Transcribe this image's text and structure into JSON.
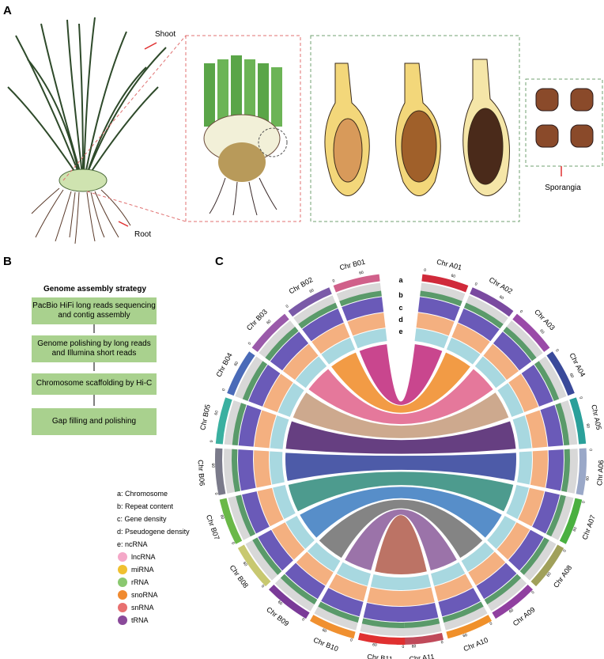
{
  "panel_a": {
    "label": "A",
    "shoot": "Shoot",
    "root": "Root",
    "sporangia": "Sporangia"
  },
  "panel_b": {
    "label": "B",
    "title": "Genome assembly strategy",
    "steps": [
      "PacBio HiFi long reads sequencing and contig assembly",
      "Genome polishing by long reads and Illumina short reads",
      "Chromosome scaffolding by Hi-C",
      "Gap filling and polishing"
    ]
  },
  "panel_c": {
    "label": "C",
    "track_letters": [
      "a",
      "b",
      "c",
      "d",
      "e"
    ],
    "chromosomes_a": [
      {
        "name": "Chr A01",
        "ticks": [
          "0",
          "60"
        ]
      },
      {
        "name": "Chr A02",
        "ticks": [
          "0",
          "60"
        ]
      },
      {
        "name": "Chr A03",
        "ticks": [
          "0",
          "60"
        ]
      },
      {
        "name": "Chr A04",
        "ticks": [
          "0",
          "60"
        ]
      },
      {
        "name": "Chr A05",
        "ticks": [
          "0",
          "60"
        ]
      },
      {
        "name": "Chr A06",
        "ticks": [
          "0",
          "60"
        ]
      },
      {
        "name": "Chr A07",
        "ticks": [
          "0",
          "60"
        ]
      },
      {
        "name": "Chr A08",
        "ticks": [
          "0",
          "60"
        ]
      },
      {
        "name": "Chr A09",
        "ticks": [
          "0",
          "60"
        ]
      },
      {
        "name": "Chr A10",
        "ticks": [
          "0",
          "60"
        ]
      },
      {
        "name": "Chr A11",
        "ticks": [
          "0",
          "60"
        ]
      }
    ],
    "chromosomes_b": [
      {
        "name": "Chr B01",
        "ticks": [
          "0",
          "60"
        ]
      },
      {
        "name": "Chr B02",
        "ticks": [
          "0",
          "60"
        ]
      },
      {
        "name": "Chr B03",
        "ticks": [
          "0",
          "60"
        ]
      },
      {
        "name": "Chr B04",
        "ticks": [
          "0",
          "60"
        ]
      },
      {
        "name": "Chr B05",
        "ticks": [
          "0",
          "60"
        ]
      },
      {
        "name": "Chr B06",
        "ticks": [
          "0",
          "60"
        ]
      },
      {
        "name": "Chr B07",
        "ticks": [
          "0",
          "60"
        ]
      },
      {
        "name": "Chr B08",
        "ticks": [
          "0",
          "60"
        ]
      },
      {
        "name": "Chr B09",
        "ticks": [
          "0",
          "60"
        ]
      },
      {
        "name": "Chr B10",
        "ticks": [
          "0",
          "60"
        ]
      },
      {
        "name": "Chr B11",
        "ticks": [
          "0",
          "60"
        ]
      }
    ],
    "legend_tracks": [
      "a: Chromosome",
      "b: Repeat content",
      "c: Gene density",
      "d: Pseudogene density",
      "e: ncRNA"
    ],
    "legend_ncrna": [
      "lncRNA",
      "miRNA",
      "rRNA",
      "snoRNA",
      "snRNA",
      "tRNA"
    ]
  }
}
